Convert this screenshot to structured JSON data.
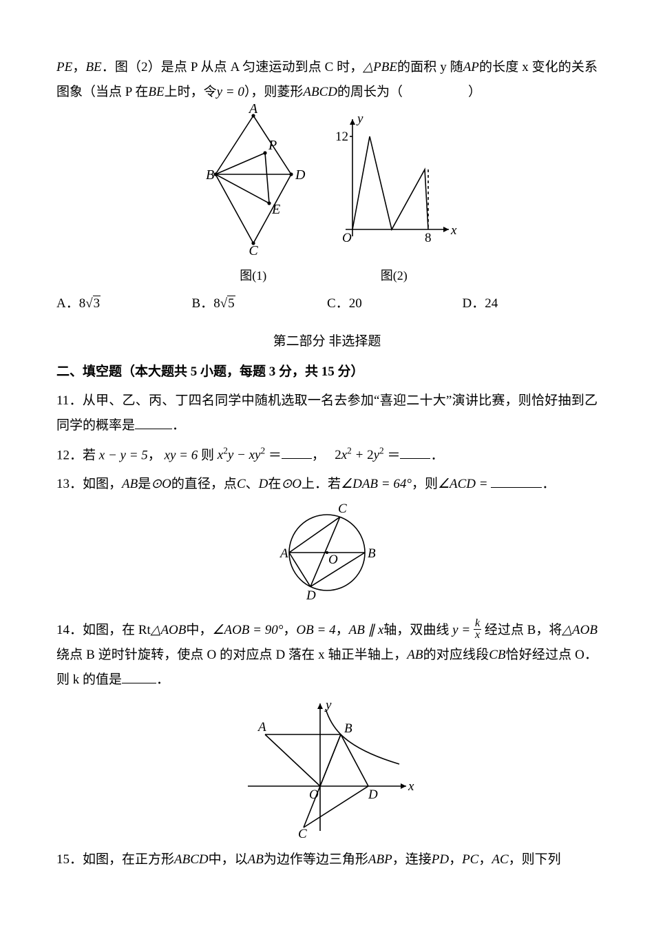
{
  "q10": {
    "line1_pre": "PE",
    "line1_comma": "，",
    "line1_be": "BE",
    "line1_mid1": "．图（2）是点 P 从点 A 匀速运动到点 C 时，",
    "line1_tri": "△PBE",
    "line1_mid2": "的面积 y 随",
    "line1_ap": "AP",
    "line1_mid3": "的长度 x 变化的关系图象（当点 P 在",
    "line1_be2": "BE",
    "line1_mid4": "上时，令",
    "line1_eq": "y = 0",
    "line1_mid5": "），则菱形",
    "line1_abcd": "ABCD",
    "line1_end": "的周长为（　　　　　）",
    "fig1": {
      "caption": "图(1)",
      "labels": {
        "A": "A",
        "B": "B",
        "C": "C",
        "D": "D",
        "P": "P",
        "E": "E"
      },
      "stroke": "#000000",
      "node_r": 2.6
    },
    "fig2": {
      "caption": "图(2)",
      "labels": {
        "O": "O",
        "x": "x",
        "y": "y",
        "ytick": "12",
        "xtick": "8"
      },
      "stroke": "#000000"
    },
    "options": {
      "A": {
        "letter": "A．",
        "val_prefix": "8",
        "root": "3"
      },
      "B": {
        "letter": "B．",
        "val_prefix": "8",
        "root": "5"
      },
      "C": {
        "letter": "C．",
        "text": "20"
      },
      "D": {
        "letter": "D．",
        "text": "24"
      }
    }
  },
  "part2_title": "第二部分 非选择题",
  "sectionII": "二、填空题（本大题共 5 小题，每题 3 分，共 15 分）",
  "q11": {
    "num": "11．",
    "text1": "从甲、乙、丙、丁四名同学中随机选取一名去参加“喜迎二十大”演讲比赛，则恰好抽到乙同学的概率是",
    "blank_w": 54,
    "tail": "．"
  },
  "q12": {
    "num": "12．",
    "pre": "若",
    "eq1_lhs": "x − y = 5",
    "sep1": "，",
    "eq2": "xy = 6",
    "then": "则",
    "expr1": "x²y − xy²",
    "eqs": "＝",
    "blank1_w": 44,
    "sep2": "，",
    "expr2": "2x² + 2y²",
    "blank2_w": 44,
    "tail": "．"
  },
  "q13": {
    "num": "13．",
    "pre": "如图，",
    "ab": "AB",
    "mid1": "是",
    "circ": "⊙O",
    "mid2": "的直径，点",
    "c": "C",
    "mid3": "、",
    "d": "D",
    "mid4": "在",
    "circ2": "⊙O",
    "mid5": "上．若",
    "ang1": "∠DAB = 64°",
    "mid6": "，则",
    "ang2": "∠ACD =",
    "blank_w": 74,
    "tail": "．",
    "fig": {
      "labels": {
        "A": "A",
        "B": "B",
        "C": "C",
        "D": "D",
        "O": "O"
      },
      "stroke": "#000000",
      "r": 55
    }
  },
  "q14": {
    "num": "14．",
    "pre": "如图，在",
    "rt": "Rt△AOB",
    "mid1": "中，",
    "ang": "∠AOB = 90°",
    "sep1": "，",
    "ob": "OB = 4",
    "sep1b": "，",
    "abpar": "AB ∥ x",
    "axis": "轴，双曲线",
    "fn_lhs": "y =",
    "frac_num": "k",
    "frac_den": "x",
    "mid2": "经过点 B，将",
    "tri": "△AOB",
    "line2a": "绕点 B 逆时针旋转，使点 O 的对应点 D 落在 x 轴正半轴上，",
    "ab2": "AB",
    "mid3": "的对应线段",
    "cb": "CB",
    "mid4": "恰好经过点 O．则 k 的值是",
    "blank_w": 50,
    "tail": "．",
    "fig": {
      "labels": {
        "A": "A",
        "B": "B",
        "C": "C",
        "D": "D",
        "O": "O",
        "x": "x",
        "y": "y"
      },
      "stroke": "#000000"
    }
  },
  "q15": {
    "num": "15．",
    "pre": "如图，在正方形",
    "abcd": "ABCD",
    "mid1": "中，以",
    "ab": "AB",
    "mid2": "为边作等边三角形",
    "abp": "ABP",
    "mid3": "，连接",
    "pd": "PD",
    "sep": "，",
    "pc": "PC",
    "sep2": "，",
    "ac": "AC",
    "tail": "，则下列"
  },
  "style": {
    "text_color": "#000000",
    "bg": "#ffffff",
    "font_size_body": 19,
    "font_size_caption": 18
  }
}
